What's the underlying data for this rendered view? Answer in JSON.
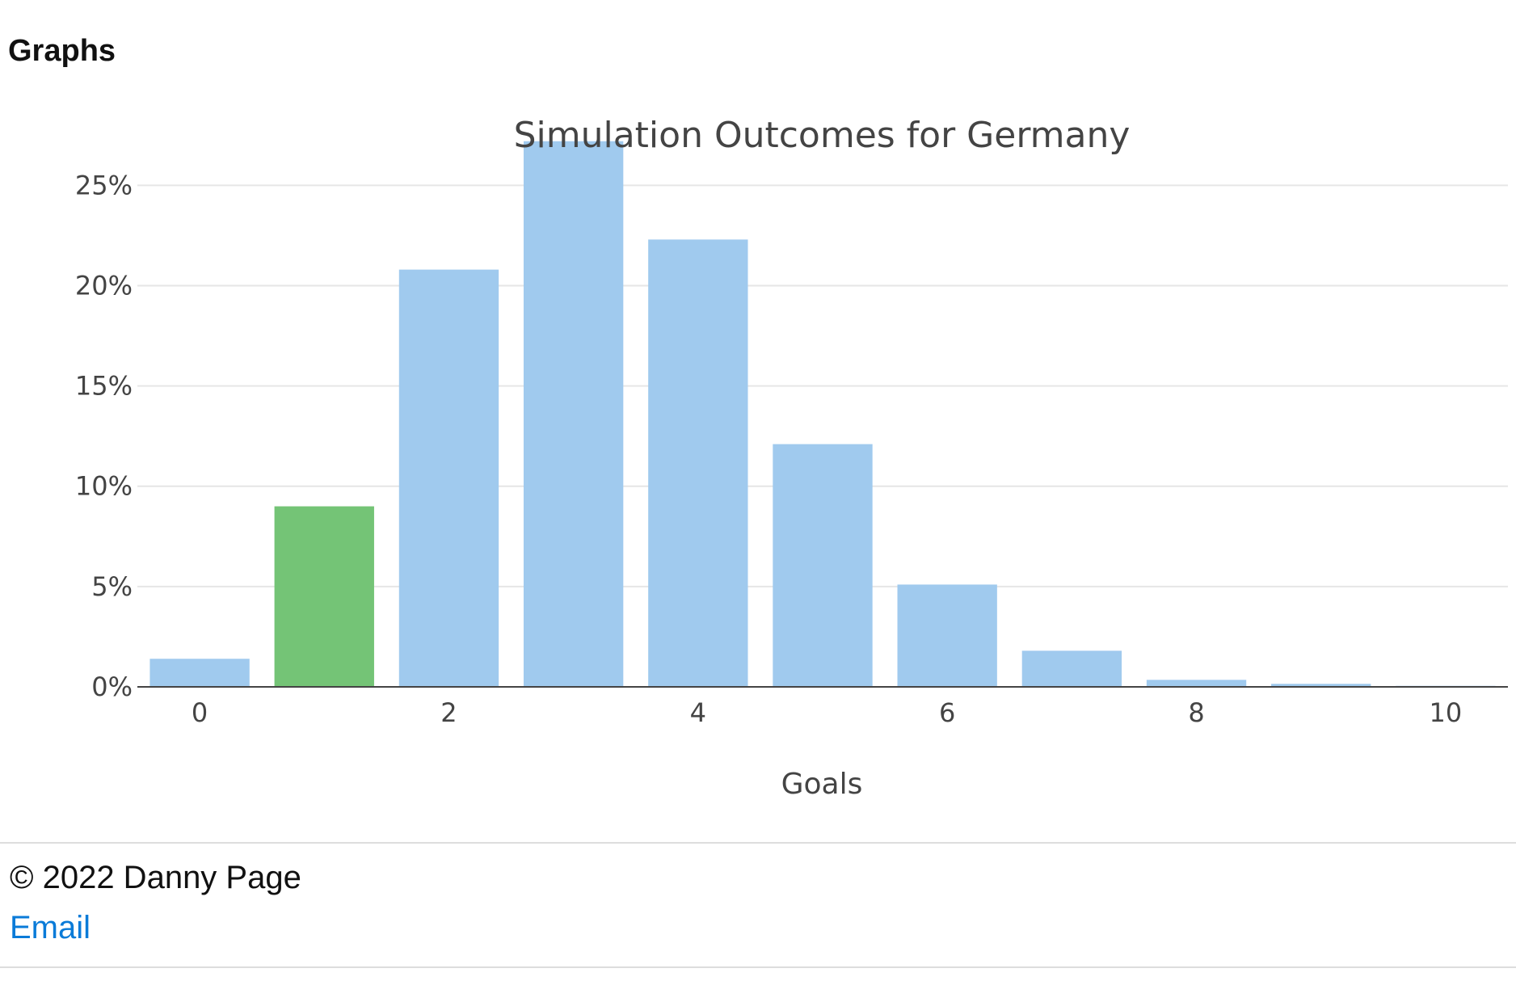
{
  "page": {
    "heading": "Graphs"
  },
  "chart_data": {
    "type": "bar",
    "title": "Simulation Outcomes for Germany",
    "xlabel": "Goals",
    "ylabel": "",
    "categories": [
      0,
      1,
      2,
      3,
      4,
      5,
      6,
      7,
      8,
      9,
      10
    ],
    "values": [
      1.4,
      9.0,
      20.8,
      27.2,
      22.3,
      12.1,
      5.1,
      1.8,
      0.35,
      0.15,
      0.05
    ],
    "x_ticks": [
      0,
      2,
      4,
      6,
      8,
      10
    ],
    "x_tick_labels": [
      "0",
      "2",
      "4",
      "6",
      "8",
      "10"
    ],
    "y_ticks": [
      0,
      5,
      10,
      15,
      20,
      25
    ],
    "y_tick_labels": [
      "0%",
      "5%",
      "10%",
      "15%",
      "20%",
      "25%"
    ],
    "ylim": [
      0,
      28.6
    ],
    "xlim": [
      -0.5,
      10.5
    ],
    "grid": true,
    "highlight_category": 1,
    "colors": {
      "bar": "#a0caee",
      "highlight": "#74c476",
      "grid": "#e6e6e6",
      "axis": "#444444"
    }
  },
  "footer": {
    "copyright": "© 2022 Danny Page",
    "email_label": "Email"
  }
}
